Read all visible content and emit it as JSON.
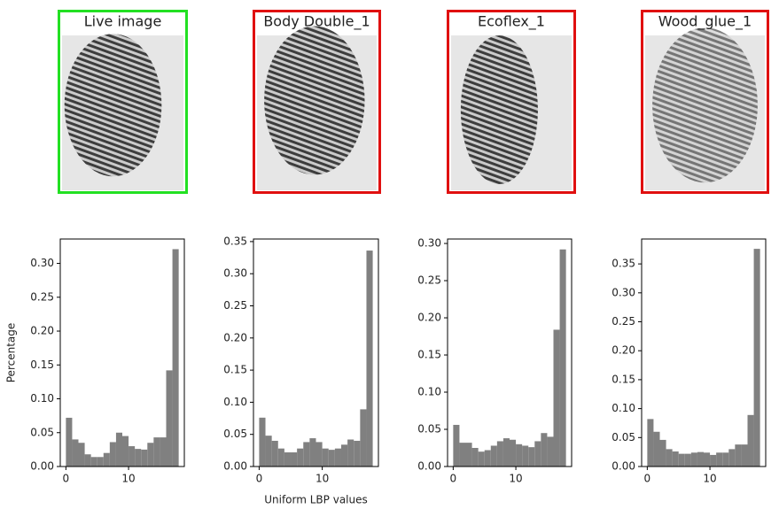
{
  "images": [
    {
      "title": "Live image",
      "border_color": "#22e022"
    },
    {
      "title": "Body Double_1",
      "border_color": "#e01010"
    },
    {
      "title": "Ecoflex_1",
      "border_color": "#e01010"
    },
    {
      "title": "Wood_glue_1",
      "border_color": "#e01010"
    }
  ],
  "chart_data": [
    {
      "type": "histogram",
      "ylabel": "Percentage",
      "color": "#808080",
      "bins": [
        0,
        1,
        2,
        3,
        4,
        5,
        6,
        7,
        8,
        9,
        10,
        11,
        12,
        13,
        14,
        15,
        16,
        17,
        18
      ],
      "values": [
        0.072,
        0.04,
        0.035,
        0.018,
        0.014,
        0.014,
        0.02,
        0.036,
        0.05,
        0.045,
        0.03,
        0.026,
        0.025,
        0.035,
        0.043,
        0.043,
        0.142,
        0.321
      ],
      "xlim": [
        -0.9,
        18.9
      ],
      "xticks": [
        0,
        10
      ],
      "ylim": [
        0,
        0.336
      ],
      "yticks": [
        {
          "value": 0,
          "label": "0.00"
        },
        0.05,
        {
          "value": 0.1,
          "label": "0.10"
        },
        0.15,
        {
          "value": 0.2,
          "label": "0.20"
        },
        0.25,
        {
          "value": 0.3,
          "label": "0.30"
        }
      ]
    },
    {
      "type": "histogram",
      "xlabel": "Uniform LBP values",
      "color": "#808080",
      "bins": [
        0,
        1,
        2,
        3,
        4,
        5,
        6,
        7,
        8,
        9,
        10,
        11,
        12,
        13,
        14,
        15,
        16,
        17,
        18
      ],
      "values": [
        0.076,
        0.048,
        0.04,
        0.028,
        0.022,
        0.022,
        0.028,
        0.038,
        0.044,
        0.038,
        0.028,
        0.026,
        0.028,
        0.034,
        0.042,
        0.04,
        0.089,
        0.336
      ],
      "xlim": [
        -0.9,
        18.9
      ],
      "xticks": [
        0,
        10
      ],
      "ylim": [
        0,
        0.354
      ],
      "yticks": [
        {
          "value": 0,
          "label": "0.00"
        },
        0.05,
        {
          "value": 0.1,
          "label": "0.10"
        },
        0.15,
        {
          "value": 0.2,
          "label": "0.20"
        },
        0.25,
        {
          "value": 0.3,
          "label": "0.30"
        },
        0.35
      ]
    },
    {
      "type": "histogram",
      "color": "#808080",
      "bins": [
        0,
        1,
        2,
        3,
        4,
        5,
        6,
        7,
        8,
        9,
        10,
        11,
        12,
        13,
        14,
        15,
        16,
        17,
        18
      ],
      "values": [
        0.056,
        0.032,
        0.032,
        0.025,
        0.02,
        0.022,
        0.028,
        0.034,
        0.038,
        0.036,
        0.03,
        0.028,
        0.026,
        0.034,
        0.045,
        0.04,
        0.184,
        0.292
      ],
      "xlim": [
        -0.9,
        18.9
      ],
      "xticks": [
        0,
        10
      ],
      "ylim": [
        0,
        0.306
      ],
      "yticks": [
        {
          "value": 0,
          "label": "0.00"
        },
        0.05,
        {
          "value": 0.1,
          "label": "0.10"
        },
        0.15,
        {
          "value": 0.2,
          "label": "0.20"
        },
        0.25,
        {
          "value": 0.3,
          "label": "0.30"
        }
      ]
    },
    {
      "type": "histogram",
      "color": "#808080",
      "bins": [
        0,
        1,
        2,
        3,
        4,
        5,
        6,
        7,
        8,
        9,
        10,
        11,
        12,
        13,
        14,
        15,
        16,
        17,
        18
      ],
      "values": [
        0.082,
        0.06,
        0.046,
        0.03,
        0.026,
        0.022,
        0.022,
        0.024,
        0.025,
        0.024,
        0.02,
        0.024,
        0.024,
        0.03,
        0.038,
        0.038,
        0.089,
        0.376
      ],
      "xlim": [
        -0.9,
        18.9
      ],
      "xticks": [
        0,
        10
      ],
      "ylim": [
        0,
        0.393
      ],
      "yticks": [
        {
          "value": 0,
          "label": "0.00"
        },
        0.05,
        {
          "value": 0.1,
          "label": "0.10"
        },
        0.15,
        {
          "value": 0.2,
          "label": "0.20"
        },
        0.25,
        {
          "value": 0.3,
          "label": "0.30"
        },
        0.35
      ]
    }
  ]
}
